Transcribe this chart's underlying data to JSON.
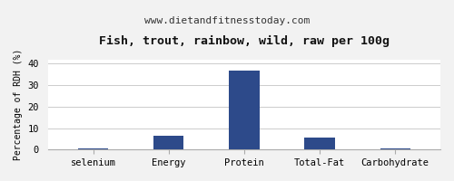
{
  "title": "Fish, trout, rainbow, wild, raw per 100g",
  "subtitle": "www.dietandfitnesstoday.com",
  "categories": [
    "selenium",
    "Energy",
    "Protein",
    "Total-Fat",
    "Carbohydrate"
  ],
  "values": [
    0.5,
    6.5,
    37.0,
    5.5,
    0.5
  ],
  "bar_color": "#2d4a8a",
  "ylabel": "Percentage of RDH (%)",
  "ylim": [
    0,
    42
  ],
  "yticks": [
    0,
    10,
    20,
    30,
    40
  ],
  "background_color": "#f2f2f2",
  "plot_bg_color": "#ffffff",
  "title_fontsize": 9.5,
  "subtitle_fontsize": 8,
  "ylabel_fontsize": 7,
  "tick_fontsize": 7.5,
  "bar_width": 0.4
}
